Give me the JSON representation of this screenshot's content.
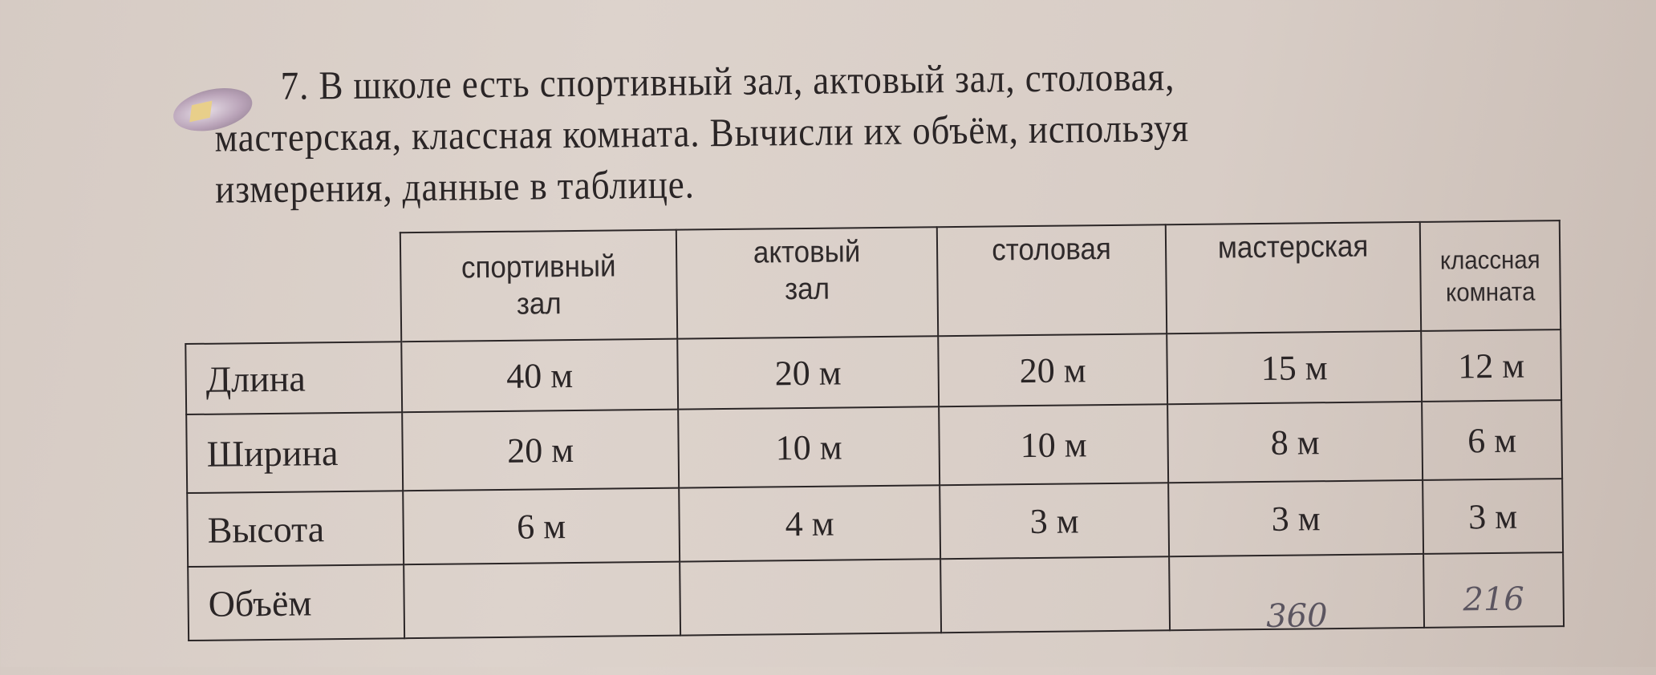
{
  "task": {
    "lines": [
      "7. В школе есть спортивный зал, актовый зал, столовая,",
      "мастерская, классная комната. Вычисли их объём, используя",
      "измерения, данные в таблице."
    ],
    "icon": "pencil-notebook-icon"
  },
  "table": {
    "columns": [
      "спортивный зал",
      "актовый зал",
      "столовая",
      "мастерская",
      "классная комната"
    ],
    "column_lines": [
      [
        "спортивный",
        "зал"
      ],
      [
        "актовый",
        "зал"
      ],
      [
        "столовая",
        ""
      ],
      [
        "мастерская",
        ""
      ],
      [
        "классная",
        "комната"
      ]
    ],
    "rows": [
      {
        "label": "Длина",
        "values": [
          "40 м",
          "20 м",
          "20 м",
          "15 м",
          "12 м"
        ]
      },
      {
        "label": "Ширина",
        "values": [
          "20 м",
          "10 м",
          "10 м",
          "8 м",
          "6 м"
        ]
      },
      {
        "label": "Высота",
        "values": [
          "6 м",
          "4 м",
          "3 м",
          "3 м",
          "3 м"
        ]
      },
      {
        "label": "Объём",
        "values": [
          "",
          "",
          "",
          "360",
          "216"
        ]
      }
    ]
  }
}
